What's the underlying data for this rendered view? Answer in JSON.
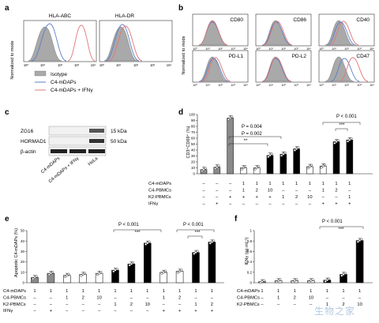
{
  "panel_labels": {
    "a": "a",
    "b": "b",
    "c": "c",
    "d": "d",
    "e": "e",
    "f": "f"
  },
  "panel_a": {
    "ylabel": "Normalized to mode",
    "subtitles": [
      "HLA-ABC",
      "HLA-DR"
    ],
    "xticks": [
      "10⁰",
      "10¹",
      "10²",
      "10³",
      "10⁴"
    ],
    "legend": [
      "Isotype",
      "C4-mDAPs",
      "C4-mDAPs + IFNγ"
    ],
    "colors": {
      "isotype": "#a9a9a9",
      "c4": "#5b7ec9",
      "ifn": "#e07878"
    }
  },
  "panel_b": {
    "ylabel": "Normalized to mode",
    "subtitles": [
      "CD80",
      "CD86",
      "CD40",
      "PD-L1",
      "PD-L2",
      "CD47"
    ]
  },
  "panel_c": {
    "rows": [
      "ZG16",
      "HORMAD1",
      "β-actin"
    ],
    "sizes": [
      "15 kDa",
      "50 kDa"
    ],
    "lanes": [
      "C4-mDAPs",
      "C4-mDAPs + IFNγ",
      "HeLa"
    ]
  },
  "panel_d": {
    "ylabel": "CD3⁺CD69⁺ (%)",
    "stats": [
      "P = 0.004",
      "P = 0.002",
      "**",
      "P < 0.001",
      "***"
    ],
    "row_labels": [
      "C4-mDAPs",
      "C4-PBMCs",
      "K2-PBMCs",
      "IFNγ"
    ],
    "rows": [
      [
        "–",
        "–",
        "–",
        "1",
        "1",
        "1",
        "1",
        "1",
        "1",
        "1",
        "1",
        "1"
      ],
      [
        "–",
        "–",
        "–",
        "1",
        "2",
        "10",
        "–",
        "–",
        "–",
        "1",
        "2",
        "–"
      ],
      [
        "–",
        "–",
        "+",
        "+",
        "+",
        "+",
        "1",
        "2",
        "10",
        "–",
        "–",
        "1"
      ],
      [
        "–",
        "+",
        "–",
        "–",
        "–",
        "–",
        "–",
        "–",
        "–",
        "+",
        "+",
        "+"
      ]
    ]
  },
  "panel_e": {
    "ylabel": "Apoptotic C4-mDAPs (%)",
    "stats": [
      "P < 0.001",
      "***",
      "P < 0.001",
      "***"
    ],
    "row_labels": [
      "C4-mDAPs",
      "C4-PBMCs",
      "K2-PBMCs",
      "IFNγ"
    ],
    "rows": [
      [
        "1",
        "1",
        "1",
        "1",
        "1",
        "1",
        "1",
        "1",
        "1",
        "1",
        "1",
        "1"
      ],
      [
        "–",
        "–",
        "1",
        "2",
        "10",
        "–",
        "–",
        "–",
        "1",
        "2",
        "–",
        "–"
      ],
      [
        "–",
        "–",
        "–",
        "–",
        "–",
        "1",
        "2",
        "10",
        "–",
        "–",
        "1",
        "2"
      ],
      [
        "–",
        "+",
        "–",
        "–",
        "–",
        "–",
        "–",
        "–",
        "+",
        "+",
        "+",
        "+"
      ]
    ]
  },
  "panel_f": {
    "ylabel": "IFNγ (ng ml⁻¹)",
    "stats": [
      "P < 0.001",
      "***"
    ],
    "row_labels": [
      "C4-mDAPs",
      "C4-PBMCs",
      "K2-PBMCs"
    ],
    "rows": [
      [
        "1",
        "1",
        "1",
        "1",
        "1",
        "1",
        "1"
      ],
      [
        "–",
        "1",
        "2",
        "10",
        "–",
        "–",
        "–"
      ],
      [
        "–",
        "–",
        "–",
        "–",
        "1",
        "2",
        "10"
      ]
    ]
  },
  "watermark": "生物之家",
  "chart_data": [
    {
      "type": "bar",
      "panel": "d",
      "ylabel": "CD3⁺CD69⁺ (%)",
      "ylim": [
        0,
        100
      ],
      "yticks": [
        0,
        10,
        20,
        30,
        40,
        50,
        60,
        70,
        80,
        90,
        100
      ],
      "values": [
        7,
        11,
        94,
        10,
        10,
        31,
        33,
        42,
        12,
        13,
        54,
        57
      ],
      "fills": [
        "#8a8a8a",
        "#8a8a8a",
        "#8a8a8a",
        "#ffffff",
        "#ffffff",
        "#000000",
        "#000000",
        "#000000",
        "#ffffff",
        "#ffffff",
        "#000000",
        "#000000"
      ]
    },
    {
      "type": "bar",
      "panel": "e",
      "ylabel": "Apoptotic C4-mDAPs (%)",
      "ylim": [
        0,
        50
      ],
      "yticks": [
        0,
        10,
        20,
        30,
        40,
        50
      ],
      "values": [
        5,
        9,
        7,
        8,
        9,
        12,
        18,
        38,
        10,
        11,
        29,
        39
      ],
      "fills": [
        "#8a8a8a",
        "#8a8a8a",
        "#ffffff",
        "#ffffff",
        "#ffffff",
        "#000000",
        "#000000",
        "#000000",
        "#ffffff",
        "#ffffff",
        "#000000",
        "#000000"
      ]
    },
    {
      "type": "bar",
      "panel": "f",
      "ylabel": "IFNγ (ng ml⁻¹)",
      "ylim": [
        0,
        1.0
      ],
      "yticks": [
        0,
        0.2,
        0.4,
        0.6,
        0.8,
        1.0
      ],
      "values": [
        0.02,
        0.04,
        0.04,
        0.04,
        0.05,
        0.16,
        0.81
      ],
      "fills": [
        "#8a8a8a",
        "#ffffff",
        "#ffffff",
        "#ffffff",
        "#000000",
        "#000000",
        "#000000"
      ]
    }
  ]
}
